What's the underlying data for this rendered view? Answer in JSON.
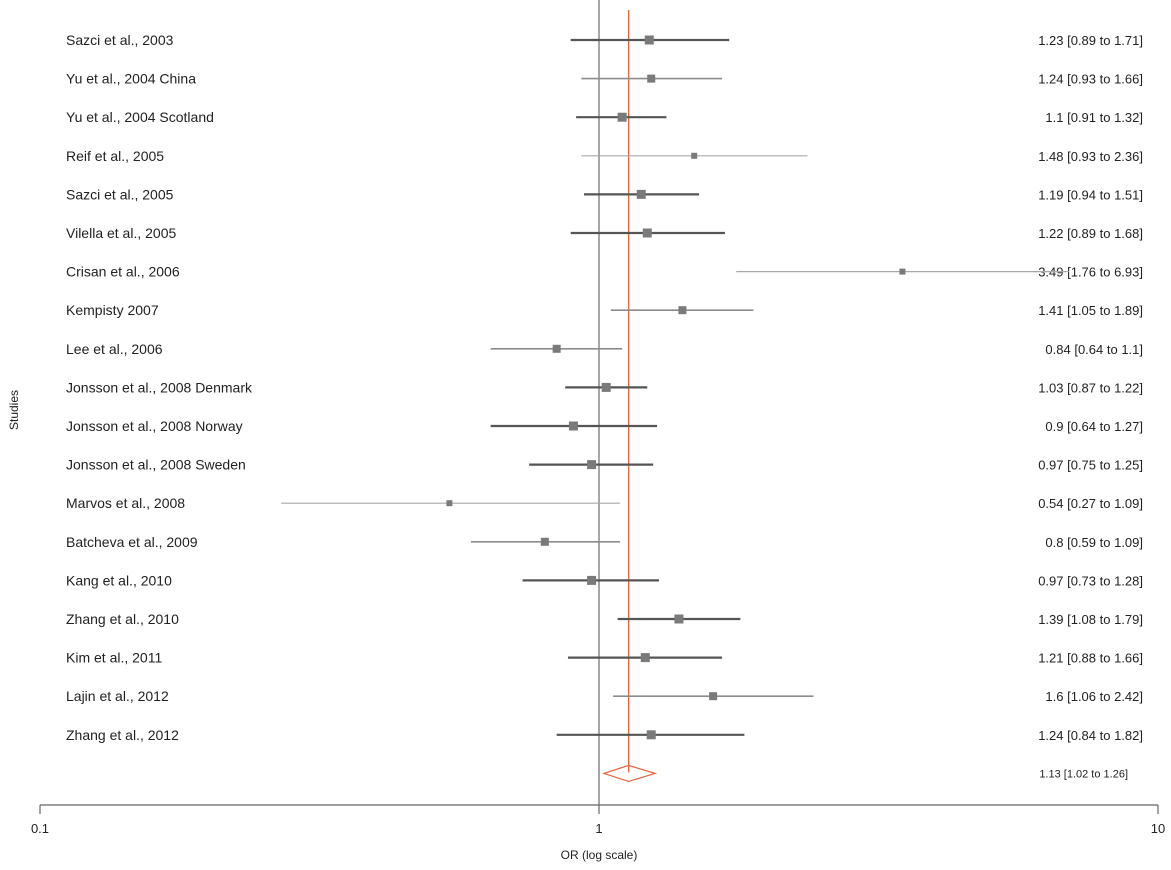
{
  "chart_data": {
    "type": "forest",
    "xscale": "log",
    "xlim": [
      0.1,
      10
    ],
    "xticks": [
      {
        "value": 0.1,
        "label": "0.1"
      },
      {
        "value": 1,
        "label": "1"
      },
      {
        "value": 10,
        "label": "10"
      }
    ],
    "xlabel": "OR (log scale)",
    "ylabel": "Studies",
    "reference_line": 1,
    "pooled_line": 1.13,
    "studies": [
      {
        "label": "Sazci et al., 2003",
        "or": 1.23,
        "lower": 0.89,
        "upper": 1.71,
        "ci_text": "1.23 [0.89 to 1.71]",
        "weight": "high"
      },
      {
        "label": "Yu et al., 2004 China",
        "or": 1.24,
        "lower": 0.93,
        "upper": 1.66,
        "ci_text": "1.24 [0.93 to 1.66]",
        "weight": "mid"
      },
      {
        "label": "Yu et al., 2004 Scotland",
        "or": 1.1,
        "lower": 0.91,
        "upper": 1.32,
        "ci_text": "1.1 [0.91 to 1.32]",
        "weight": "high"
      },
      {
        "label": "Reif et al., 2005",
        "or": 1.48,
        "lower": 0.93,
        "upper": 2.36,
        "ci_text": "1.48 [0.93 to 2.36]",
        "weight": "low"
      },
      {
        "label": "Sazci et al., 2005",
        "or": 1.19,
        "lower": 0.94,
        "upper": 1.51,
        "ci_text": "1.19 [0.94 to 1.51]",
        "weight": "high"
      },
      {
        "label": "Vilella et al., 2005",
        "or": 1.22,
        "lower": 0.89,
        "upper": 1.68,
        "ci_text": "1.22 [0.89 to 1.68]",
        "weight": "high"
      },
      {
        "label": "Crisan et al., 2006",
        "or": 3.49,
        "lower": 1.76,
        "upper": 6.93,
        "ci_text": "3.49 [1.76 to 6.93]",
        "weight": "low"
      },
      {
        "label": "Kempisty  2007",
        "or": 1.41,
        "lower": 1.05,
        "upper": 1.89,
        "ci_text": "1.41 [1.05 to 1.89]",
        "weight": "mid"
      },
      {
        "label": "Lee et al., 2006",
        "or": 0.84,
        "lower": 0.64,
        "upper": 1.1,
        "ci_text": "0.84 [0.64 to 1.1]",
        "weight": "mid"
      },
      {
        "label": "Jonsson et al., 2008 Denmark",
        "or": 1.03,
        "lower": 0.87,
        "upper": 1.22,
        "ci_text": "1.03 [0.87 to 1.22]",
        "weight": "high"
      },
      {
        "label": "Jonsson et al., 2008 Norway",
        "or": 0.9,
        "lower": 0.64,
        "upper": 1.27,
        "ci_text": "0.9 [0.64 to 1.27]",
        "weight": "high"
      },
      {
        "label": "Jonsson et al., 2008 Sweden",
        "or": 0.97,
        "lower": 0.75,
        "upper": 1.25,
        "ci_text": "0.97 [0.75 to 1.25]",
        "weight": "high"
      },
      {
        "label": "Marvos et al., 2008",
        "or": 0.54,
        "lower": 0.27,
        "upper": 1.09,
        "ci_text": "0.54 [0.27 to 1.09]",
        "weight": "low"
      },
      {
        "label": "Batcheva et al., 2009",
        "or": 0.8,
        "lower": 0.59,
        "upper": 1.09,
        "ci_text": "0.8 [0.59 to 1.09]",
        "weight": "mid"
      },
      {
        "label": "Kang et al., 2010",
        "or": 0.97,
        "lower": 0.73,
        "upper": 1.28,
        "ci_text": "0.97 [0.73 to 1.28]",
        "weight": "high"
      },
      {
        "label": "Zhang et al., 2010",
        "or": 1.39,
        "lower": 1.08,
        "upper": 1.79,
        "ci_text": "1.39 [1.08 to 1.79]",
        "weight": "high"
      },
      {
        "label": "Kim et al., 2011",
        "or": 1.21,
        "lower": 0.88,
        "upper": 1.66,
        "ci_text": "1.21 [0.88 to 1.66]",
        "weight": "high"
      },
      {
        "label": "Lajin et al., 2012",
        "or": 1.6,
        "lower": 1.06,
        "upper": 2.42,
        "ci_text": "1.6 [1.06 to 2.42]",
        "weight": "mid"
      },
      {
        "label": "Zhang et al., 2012",
        "or": 1.24,
        "lower": 0.84,
        "upper": 1.82,
        "ci_text": "1.24 [0.84 to 1.82]",
        "weight": "high"
      }
    ],
    "summary": {
      "or": 1.13,
      "lower": 1.02,
      "upper": 1.26,
      "ci_text": "1.13 [1.02 to 1.26]"
    },
    "colors": {
      "high_weight": "#555555",
      "mid_weight": "#8c8c8c",
      "low_weight": "#a8a8a8",
      "marker": "#7a7a7a",
      "reference": "#888888",
      "pooled": "#e8603c",
      "axis": "#666666"
    }
  }
}
